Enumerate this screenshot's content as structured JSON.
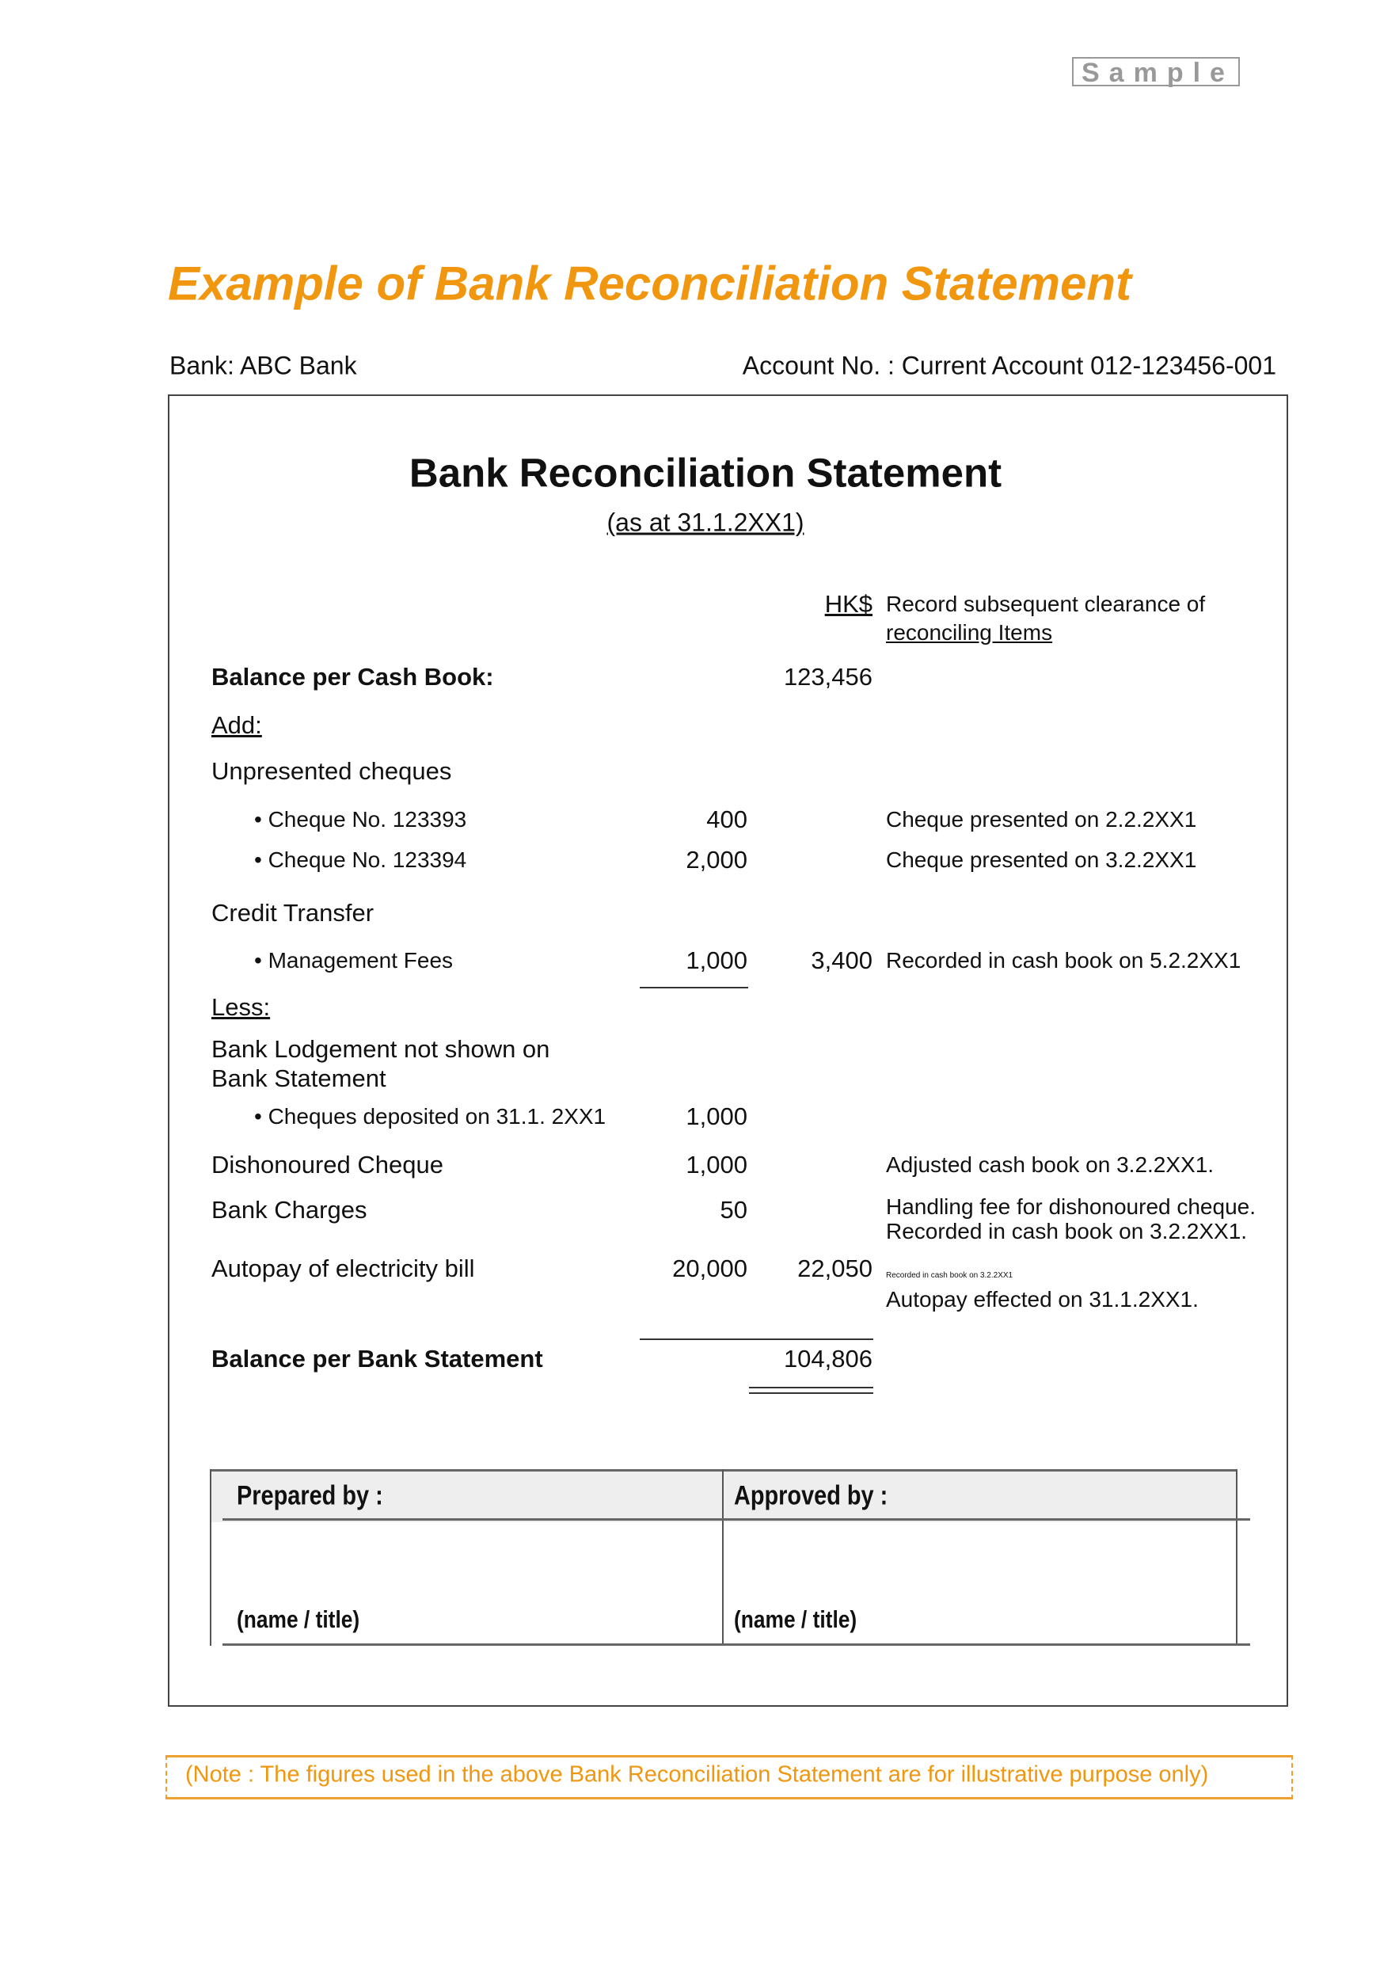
{
  "watermark": "Sample",
  "title": "Example of Bank Reconciliation Statement",
  "bank": "Bank: ABC Bank",
  "account": "Account No. : Current Account 012-123456-001",
  "statement": {
    "heading": "Bank Reconciliation Statement",
    "date": "(as at 31.1.2XX1)",
    "currency": "HK$",
    "notes_header_1": "Record subsequent clearance of",
    "notes_header_2": "reconciling Items",
    "balance_cash_book": {
      "label": "Balance per Cash Book:",
      "amount": "123,456"
    },
    "add_label": "Add:",
    "unpresented_label": "Unpresented cheques",
    "cheque1": {
      "label": "• Cheque No. 123393",
      "amount": "400",
      "note": "Cheque presented on 2.2.2XX1"
    },
    "cheque2": {
      "label": "• Cheque No. 123394",
      "amount": "2,000",
      "note": "Cheque presented on 3.2.2XX1"
    },
    "credit_transfer_label": "Credit Transfer",
    "mgmt_fees": {
      "label": "• Management Fees",
      "amount": "1,000",
      "total": "3,400",
      "note": "Recorded in cash book on 5.2.2XX1"
    },
    "less_label": "Less:",
    "lodgement_label_1": "Bank Lodgement not shown on",
    "lodgement_label_2": "Bank Statement",
    "cheques_deposited": {
      "label": "• Cheques deposited on 31.1. 2XX1",
      "amount": "1,000"
    },
    "dishonoured": {
      "label": "Dishonoured Cheque",
      "amount": "1,000",
      "note": "Adjusted cash book on 3.2.2XX1."
    },
    "bank_charges": {
      "label": "Bank Charges",
      "amount": "50",
      "note": "Handling fee for dishonoured cheque. Recorded in cash book on 3.2.2XX1.",
      "tiny_note": "Recorded in cash book on 3.2.2XX1"
    },
    "autopay": {
      "label": "Autopay of electricity bill",
      "amount": "20,000",
      "total": "22,050",
      "note": "Autopay effected on 31.1.2XX1."
    },
    "balance_bank": {
      "label": "Balance per Bank Statement",
      "amount": "104,806"
    }
  },
  "signatures": {
    "prepared_by": "Prepared by :",
    "approved_by": "Approved by :",
    "name_title_1": "(name / title)",
    "name_title_2": "(name / title)"
  },
  "footnote": "(Note : The figures used in the above Bank Reconciliation Statement are for illustrative purpose only)",
  "colors": {
    "accent": "#f0960f"
  }
}
